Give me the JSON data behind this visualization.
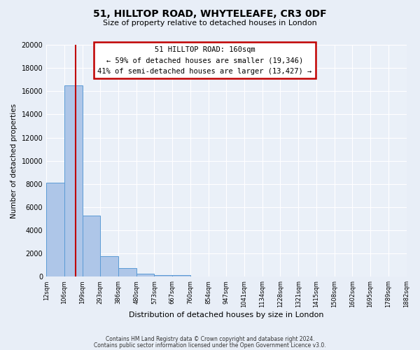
{
  "title": "51, HILLTOP ROAD, WHYTELEAFE, CR3 0DF",
  "subtitle": "Size of property relative to detached houses in London",
  "xlabel": "Distribution of detached houses by size in London",
  "ylabel": "Number of detached properties",
  "bar_values": [
    8100,
    16500,
    5300,
    1800,
    750,
    280,
    150,
    120,
    50,
    30,
    20,
    10,
    8,
    5,
    3,
    2,
    2,
    1,
    1,
    1
  ],
  "bin_labels": [
    "12sqm",
    "106sqm",
    "199sqm",
    "293sqm",
    "386sqm",
    "480sqm",
    "573sqm",
    "667sqm",
    "760sqm",
    "854sqm",
    "947sqm",
    "1041sqm",
    "1134sqm",
    "1228sqm",
    "1321sqm",
    "1415sqm",
    "1508sqm",
    "1602sqm",
    "1695sqm",
    "1789sqm",
    "1882sqm"
  ],
  "bar_color": "#aec6e8",
  "bar_edge_color": "#5b9bd5",
  "vline_x": 1.63,
  "vline_color": "#c00000",
  "ylim": [
    0,
    20000
  ],
  "yticks": [
    0,
    2000,
    4000,
    6000,
    8000,
    10000,
    12000,
    14000,
    16000,
    18000,
    20000
  ],
  "annotation_title": "51 HILLTOP ROAD: 160sqm",
  "annotation_line1": "← 59% of detached houses are smaller (19,346)",
  "annotation_line2": "41% of semi-detached houses are larger (13,427) →",
  "annotation_box_color": "#ffffff",
  "annotation_box_edge": "#c00000",
  "footer1": "Contains HM Land Registry data © Crown copyright and database right 2024.",
  "footer2": "Contains public sector information licensed under the Open Government Licence v3.0.",
  "background_color": "#e8eef7",
  "plot_bg_color": "#eaf0f8"
}
